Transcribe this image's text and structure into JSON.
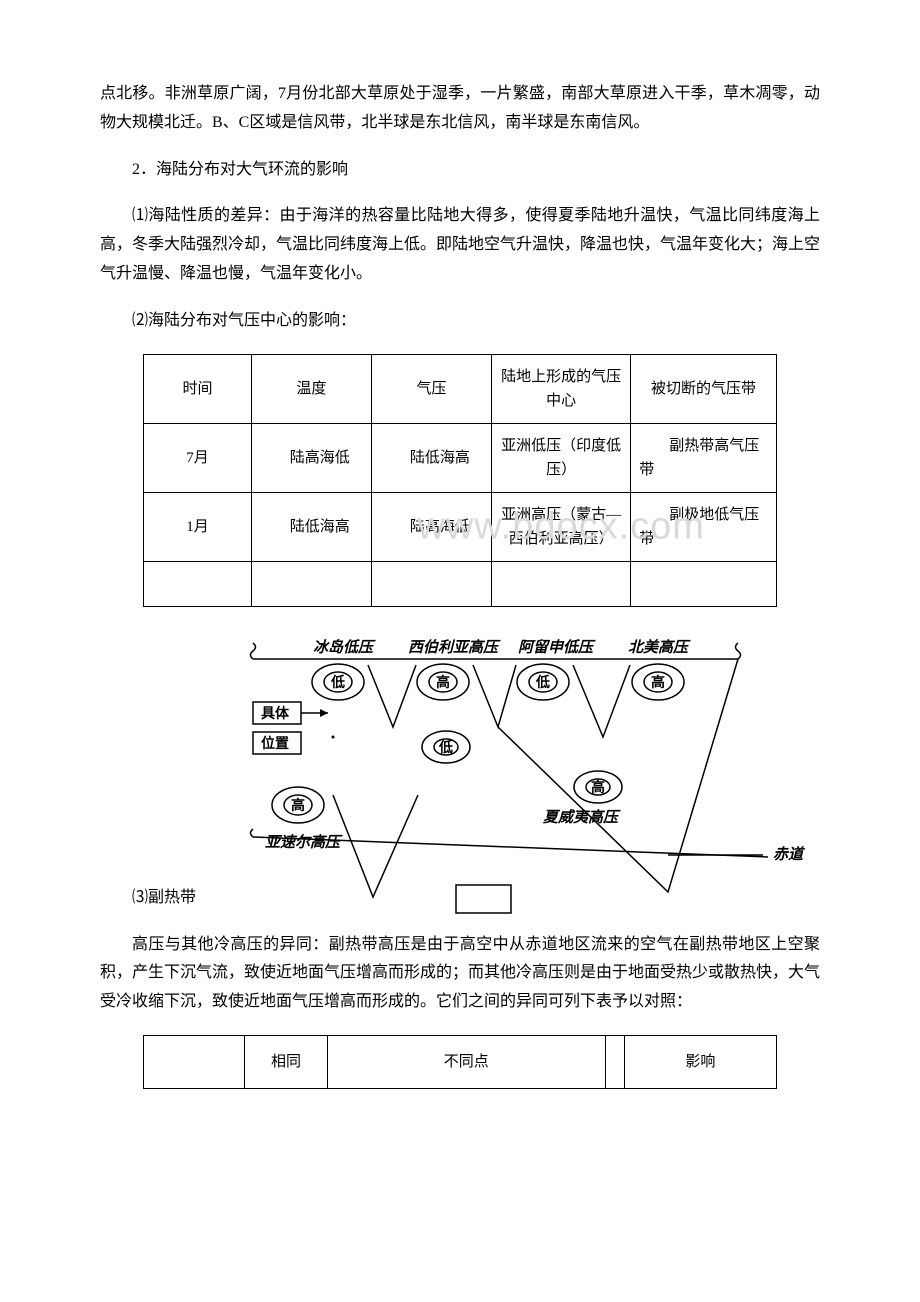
{
  "paragraphs": {
    "p1": "点北移。非洲草原广阔，7月份北部大草原处于湿季，一片繁盛，南部大草原进入干季，草木凋零，动物大规模北迁。B、C区域是信风带，北半球是东北信风，南半球是东南信风。",
    "p2": "2．海陆分布对大气环流的影响",
    "p3": "⑴海陆性质的差异：由于海洋的热容量比陆地大得多，使得夏季陆地升温快，气温比同纬度海上高，冬季大陆强烈冷却，气温比同纬度海上低。即陆地空气升温快，降温也快，气温年变化大；海上空气升温慢、降温也慢，气温年变化小。",
    "p4": "⑵海陆分布对气压中心的影响：",
    "p5_label": "⑶副热带",
    "p6": "高压与其他冷高压的异同：副热带高压是由于高空中从赤道地区流来的空气在副热带地区上空聚积，产生下沉气流，致使近地面气压增高而形成的；而其他冷高压则是由于地面受热少或散热快，大气受冷收缩下沉，致使近地面气压增高而形成的。它们之间的异同可列下表予以对照："
  },
  "table1": {
    "headers": [
      "时间",
      "温度",
      "气压",
      "陆地上形成的气压中心",
      "被切断的气压带"
    ],
    "widths": [
      17,
      19,
      19,
      22,
      23
    ],
    "rows": [
      {
        "cells": [
          "7月",
          "陆高海低",
          "陆低海高",
          "亚洲低压（印度低压）",
          "副热带高气压带"
        ]
      },
      {
        "cells": [
          "1月",
          "陆低海高",
          "陆高海低",
          "亚洲高压（蒙古—西伯利亚高压）",
          "副极地低气压带"
        ]
      }
    ],
    "watermark": "www.bdocx.com"
  },
  "diagram": {
    "labels": {
      "top": [
        "冰岛低压",
        "西伯利亚高压",
        "阿留申低压",
        "北美高压"
      ],
      "left_box1": "具体",
      "left_box2": "位置",
      "bottom_left": "亚速尔高压",
      "bottom_right": "夏威夷高压",
      "equator": "赤道"
    },
    "nodes": {
      "low": "低",
      "high": "高"
    },
    "colors": {
      "stroke": "#000000",
      "fill": "#ffffff",
      "text": "#000000"
    }
  },
  "table2": {
    "headers": [
      "",
      "相同",
      "不同点",
      "",
      "影响"
    ],
    "widths": [
      16,
      13,
      44,
      3,
      24
    ]
  }
}
